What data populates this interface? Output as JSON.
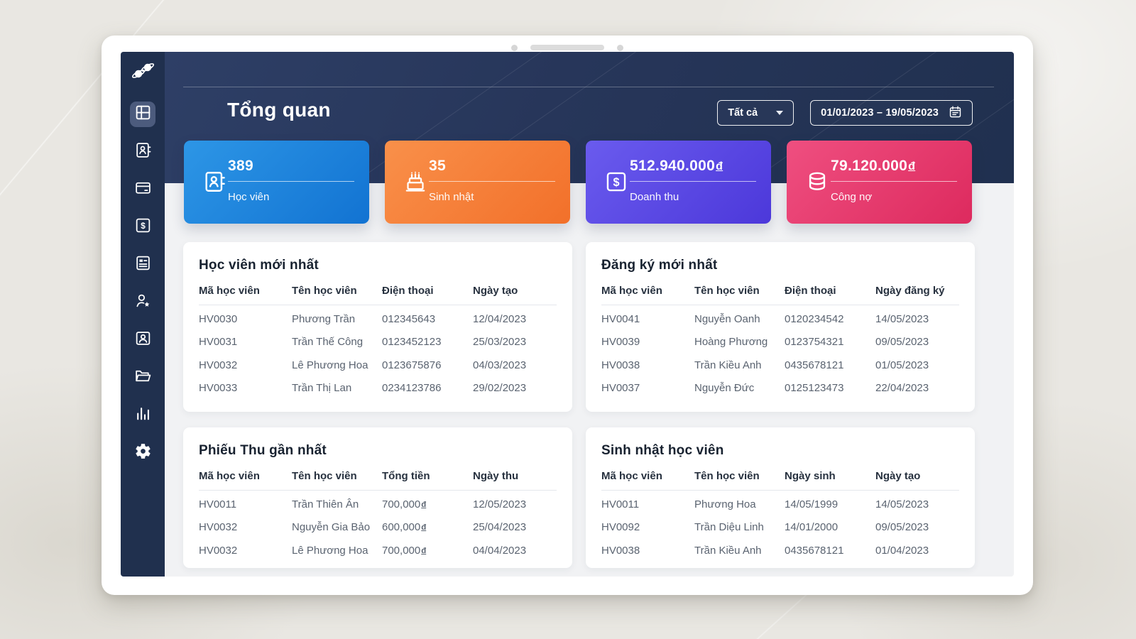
{
  "header": {
    "title": "Tổng quan",
    "filter_label": "Tất cả",
    "date_range": "01/01/2023 – 19/05/2023"
  },
  "currency": "đ",
  "sidebar": {
    "items": [
      {
        "name": "overview",
        "icon": "grid-icon",
        "active": true
      },
      {
        "name": "students",
        "icon": "contact-book-icon",
        "active": false
      },
      {
        "name": "classes",
        "icon": "credit-card-icon",
        "active": false
      },
      {
        "name": "receipts",
        "icon": "dollar-square-icon",
        "active": false
      },
      {
        "name": "news",
        "icon": "document-lines-icon",
        "active": false
      },
      {
        "name": "leads",
        "icon": "person-star-icon",
        "active": false
      },
      {
        "name": "accounts",
        "icon": "person-badge-icon",
        "active": false
      },
      {
        "name": "documents",
        "icon": "folder-open-icon",
        "active": false
      },
      {
        "name": "reports",
        "icon": "bar-chart-icon",
        "active": false
      },
      {
        "name": "settings",
        "icon": "gear-icon",
        "active": false
      }
    ]
  },
  "stats": [
    {
      "value": "389",
      "label": "Học viên",
      "icon": "contact-book-icon",
      "color_from": "#2d96e6",
      "color_to": "#1273d2"
    },
    {
      "value": "35",
      "label": "Sinh nhật",
      "icon": "cake-icon",
      "color_from": "#f9904a",
      "color_to": "#f2702a"
    },
    {
      "value": "512.940.000đ",
      "label": "Doanh thu",
      "icon": "dollar-square-icon",
      "color_from": "#6a5bee",
      "color_to": "#4c38da"
    },
    {
      "value": "79.120.000đ",
      "label": "Công nợ",
      "icon": "database-icon",
      "color_from": "#ef4f80",
      "color_to": "#dd2a5e"
    }
  ],
  "tables": [
    {
      "title": "Học viên mới nhất",
      "columns": [
        "Mã học viên",
        "Tên học viên",
        "Điện thoại",
        "Ngày tạo"
      ],
      "rows": [
        [
          "HV0030",
          "Phương Trần",
          "012345643",
          "12/04/2023"
        ],
        [
          "HV0031",
          "Trần Thế Công",
          "0123452123",
          "25/03/2023"
        ],
        [
          "HV0032",
          "Lê Phương Hoa",
          "0123675876",
          "04/03/2023"
        ],
        [
          "HV0033",
          "Trần Thị Lan",
          "0234123786",
          "29/02/2023"
        ]
      ]
    },
    {
      "title": "Đăng ký mới nhất",
      "columns": [
        "Mã học viên",
        "Tên học viên",
        "Điện thoại",
        "Ngày đăng ký"
      ],
      "rows": [
        [
          "HV0041",
          "Nguyễn Oanh",
          "0120234542",
          "14/05/2023"
        ],
        [
          "HV0039",
          "Hoàng Phương",
          "0123754321",
          "09/05/2023"
        ],
        [
          "HV0038",
          "Trần Kiều Anh",
          "0435678121",
          "01/05/2023"
        ],
        [
          "HV0037",
          "Nguyễn Đức",
          "0125123473",
          "22/04/2023"
        ]
      ]
    },
    {
      "title": "Phiếu Thu gần nhất",
      "columns": [
        "Mã học viên",
        "Tên học viên",
        "Tổng tiền",
        "Ngày thu"
      ],
      "rows": [
        [
          "HV0011",
          "Trần Thiên Ân",
          "700,000đ",
          "12/05/2023"
        ],
        [
          "HV0032",
          "Nguyễn Gia Bảo",
          "600,000đ",
          "25/04/2023"
        ],
        [
          "HV0032",
          "Lê Phương Hoa",
          "700,000đ",
          "04/04/2023"
        ]
      ]
    },
    {
      "title": "Sinh nhật học viên",
      "columns": [
        "Mã học viên",
        "Tên học viên",
        "Ngày sinh",
        "Ngày tạo"
      ],
      "rows": [
        [
          "HV0011",
          "Phương Hoa",
          "14/05/1999",
          "14/05/2023"
        ],
        [
          "HV0092",
          "Trần Diệu Linh",
          "14/01/2000",
          "09/05/2023"
        ],
        [
          "HV0038",
          "Trần Kiều Anh",
          "0435678121",
          "01/04/2023"
        ]
      ]
    }
  ]
}
